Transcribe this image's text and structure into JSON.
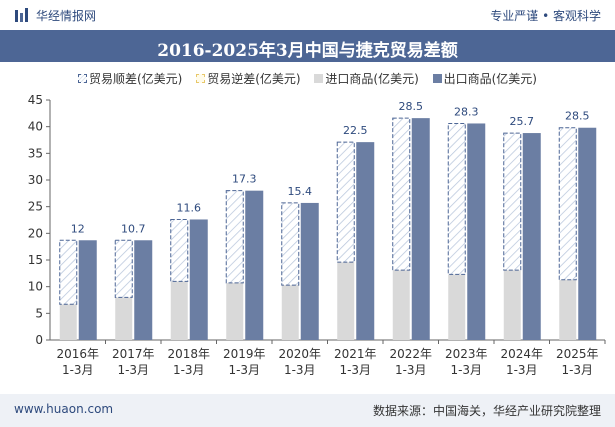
{
  "header": {
    "brand": "华经情报网",
    "slogan": "专业严谨 • 客观科学"
  },
  "title": "2016-2025年3月中国与捷克贸易差额",
  "legend": {
    "surplus": "贸易顺差(亿美元)",
    "deficit": "贸易逆差(亿美元)",
    "import": "进口商品(亿美元)",
    "export": "出口商品(亿美元)"
  },
  "footer": {
    "website": "www.huaon.com",
    "source": "数据来源：中国海关，华经产业研究院整理"
  },
  "colors": {
    "export": "#6b7ea3",
    "import": "#d9d9d9",
    "surplus_border": "#4d6695",
    "deficit_border": "#e8c86a",
    "title_bar": "#4d6695"
  },
  "chart_data": {
    "type": "bar",
    "categories": [
      "2016年 1-3月",
      "2017年 1-3月",
      "2018年 1-3月",
      "2019年 1-3月",
      "2020年 1-3月",
      "2021年 1-3月",
      "2022年 1-3月",
      "2023年 1-3月",
      "2024年 1-3月",
      "2025年 1-3月"
    ],
    "series": [
      {
        "name": "出口商品(亿美元)",
        "values": [
          18.7,
          18.7,
          22.6,
          28.0,
          25.7,
          37.1,
          41.6,
          40.6,
          38.8,
          39.8
        ]
      },
      {
        "name": "进口商品(亿美元)",
        "values": [
          6.7,
          8.0,
          11.0,
          10.7,
          10.3,
          14.6,
          13.1,
          12.3,
          13.1,
          11.3
        ]
      },
      {
        "name": "贸易顺差(亿美元)",
        "values": [
          12,
          10.7,
          11.6,
          17.3,
          15.4,
          22.5,
          28.5,
          28.3,
          25.7,
          28.5
        ]
      }
    ],
    "ylim": [
      0,
      45
    ],
    "yticks": [
      0,
      5,
      10,
      15,
      20,
      25,
      30,
      35,
      40,
      45
    ],
    "grid": false,
    "legend_position": "top"
  }
}
